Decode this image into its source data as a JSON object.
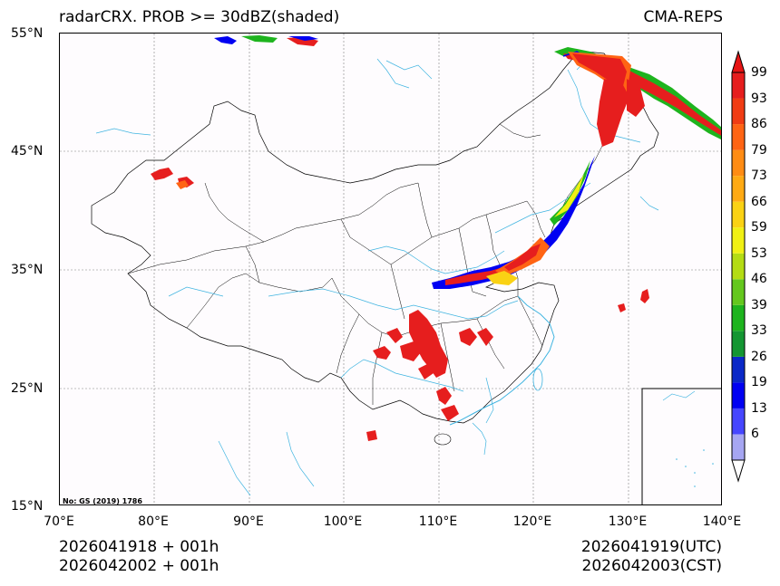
{
  "title_left": "radarCRX. PROB >= 30dBZ(shaded)",
  "title_right": "CMA-REPS",
  "lat_labels": [
    "55°N",
    "45°N",
    "35°N",
    "25°N",
    "15°N"
  ],
  "lon_labels": [
    "70°E",
    "80°E",
    "90°E",
    "100°E",
    "110°E",
    "120°E",
    "130°E",
    "140°E"
  ],
  "extent": {
    "lon_min": 70,
    "lon_max": 140,
    "lat_min": 15,
    "lat_max": 55
  },
  "colorbar": {
    "levels": [
      "99",
      "93",
      "86",
      "79",
      "73",
      "66",
      "59",
      "53",
      "46",
      "39",
      "33",
      "26",
      "19",
      "13",
      "6"
    ],
    "colors": [
      "#a6a6f2",
      "#4646ff",
      "#0000f2",
      "#0a28c8",
      "#149632",
      "#1eb41e",
      "#64c81e",
      "#b4dc14",
      "#f0f014",
      "#fad214",
      "#ffaa14",
      "#ff8c14",
      "#ff6414",
      "#f03c14",
      "#e61e1e"
    ],
    "under_color": "#ffffff",
    "over_color": "#e61414"
  },
  "footer": {
    "left_line1": "2026041918  +  001h",
    "left_line2": "2026042002  +  001h",
    "right_line1": "2026041919(UTC)",
    "right_line2": "2026042003(CST)"
  },
  "map_note": "No: GS (2019) 1786",
  "colors": {
    "river": "#3fb4e0",
    "border": "#000000",
    "grid": "#808080",
    "ocean": "#fefcfe"
  }
}
